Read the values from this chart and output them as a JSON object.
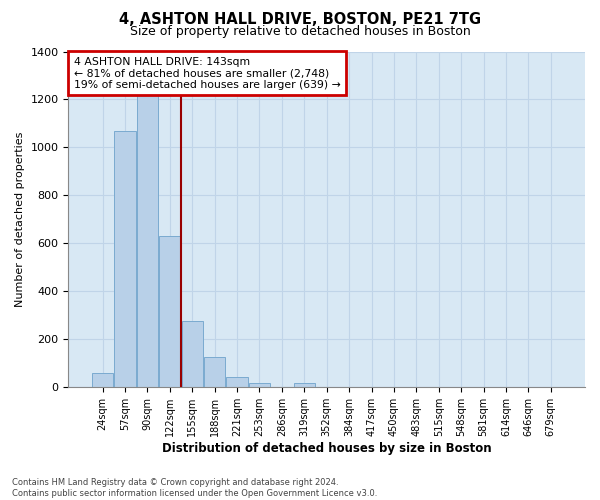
{
  "title1": "4, ASHTON HALL DRIVE, BOSTON, PE21 7TG",
  "title2": "Size of property relative to detached houses in Boston",
  "xlabel": "Distribution of detached houses by size in Boston",
  "ylabel": "Number of detached properties",
  "categories": [
    "24sqm",
    "57sqm",
    "90sqm",
    "122sqm",
    "155sqm",
    "188sqm",
    "221sqm",
    "253sqm",
    "286sqm",
    "319sqm",
    "352sqm",
    "384sqm",
    "417sqm",
    "450sqm",
    "483sqm",
    "515sqm",
    "548sqm",
    "581sqm",
    "614sqm",
    "646sqm",
    "679sqm"
  ],
  "values": [
    60,
    1070,
    1240,
    630,
    275,
    125,
    42,
    18,
    0,
    18,
    0,
    0,
    0,
    0,
    0,
    0,
    0,
    0,
    0,
    0,
    0
  ],
  "bar_color": "#b8d0e8",
  "bar_edge_color": "#7aaad0",
  "grid_color": "#c0d4e8",
  "background_color": "#d8e8f4",
  "vline_x_idx": 3.5,
  "vline_color": "#990000",
  "ylim": [
    0,
    1400
  ],
  "yticks": [
    0,
    200,
    400,
    600,
    800,
    1000,
    1200,
    1400
  ],
  "annotation_line1": "4 ASHTON HALL DRIVE: 143sqm",
  "annotation_line2": "← 81% of detached houses are smaller (2,748)",
  "annotation_line3": "19% of semi-detached houses are larger (639) →",
  "footer1": "Contains HM Land Registry data © Crown copyright and database right 2024.",
  "footer2": "Contains public sector information licensed under the Open Government Licence v3.0."
}
